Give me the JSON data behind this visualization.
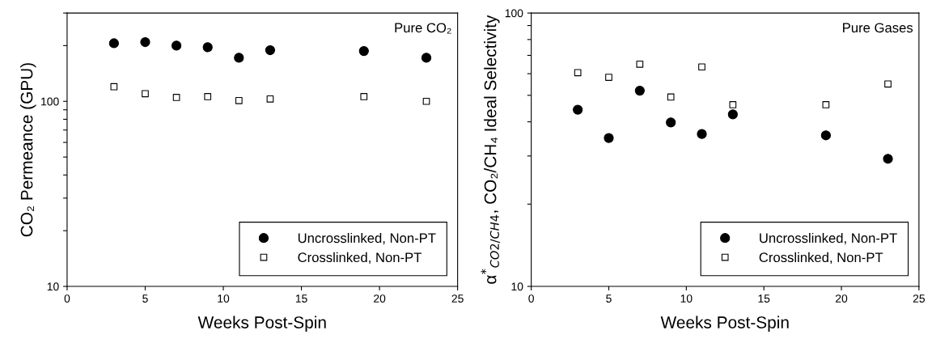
{
  "chart_data": [
    {
      "type": "scatter",
      "xlabel": "Weeks Post-Spin",
      "ylabel": "CO₂ Permeance (GPU)",
      "annotations": [
        "Pure CO₂"
      ],
      "x": [
        3,
        5,
        7,
        9,
        11,
        13,
        19,
        23
      ],
      "series": [
        {
          "name": "Uncrosslinked, Non-PT",
          "color": "#000000",
          "marker": "circle",
          "values": [
            206,
            209,
            200,
            196,
            172,
            189,
            187,
            172
          ]
        },
        {
          "name": "Crosslinked, Non-PT",
          "color": "#ffffff",
          "marker": "square",
          "values": [
            120,
            110,
            105,
            106,
            101,
            103,
            106,
            100
          ]
        }
      ],
      "log": true,
      "xlim": [
        0,
        25
      ],
      "xticks": [
        0,
        5,
        10,
        15,
        20,
        25
      ],
      "ylim": [
        10,
        300
      ],
      "yticks": [
        10,
        {
          "value": 20,
          "label": null
        },
        {
          "value": 30,
          "label": null
        },
        {
          "value": 40,
          "label": null
        },
        {
          "value": 50,
          "label": null
        },
        {
          "value": 60,
          "label": null
        },
        {
          "value": 70,
          "label": null
        },
        {
          "value": 80,
          "label": null
        },
        {
          "value": 90,
          "label": null
        },
        100,
        {
          "value": 200,
          "label": null
        },
        {
          "value": 300,
          "label": null
        }
      ],
      "grid": false,
      "legend": "bottom right"
    },
    {
      "type": "scatter",
      "xlabel": "Weeks Post-Spin",
      "ylabel": "α$^{*}$$_{CO2/CH4}$, CO₂/CH₄ Ideal Selectivity",
      "annotations": [
        "Pure Gases"
      ],
      "x": [
        3,
        5,
        7,
        9,
        11,
        13,
        19,
        23
      ],
      "series": [
        {
          "name": "Uncrosslinked, Non-PT",
          "color": "#000000",
          "marker": "circle",
          "values": [
            44.3,
            34.9,
            52.0,
            39.8,
            36.1,
            42.6,
            35.7,
            29.3
          ]
        },
        {
          "name": "Crosslinked, Non-PT",
          "color": "#ffffff",
          "marker": "square",
          "values": [
            60.5,
            58.2,
            65.0,
            49.3,
            63.5,
            46.2,
            46.2,
            55.0
          ]
        }
      ],
      "log": true,
      "xlim": [
        0,
        25
      ],
      "xticks": [
        0,
        5,
        10,
        15,
        20,
        25
      ],
      "ylim": [
        10,
        100
      ],
      "yticks": [
        10,
        {
          "value": 20,
          "label": null
        },
        {
          "value": 30,
          "label": null
        },
        {
          "value": 40,
          "label": null
        },
        {
          "value": 50,
          "label": null
        },
        {
          "value": 60,
          "label": null
        },
        {
          "value": 70,
          "label": null
        },
        {
          "value": 80,
          "label": null
        },
        {
          "value": 90,
          "label": null
        },
        100
      ],
      "grid": false,
      "legend": "bottom right"
    }
  ]
}
